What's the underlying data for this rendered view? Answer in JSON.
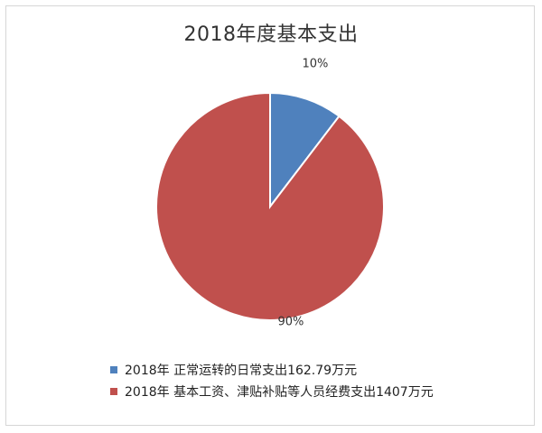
{
  "chart_data": {
    "type": "pie",
    "title": "2018年度基本支出",
    "slices": [
      {
        "label": "2018年 正常运转的日常支出162.79万元",
        "value": 162.79,
        "percent_label": "10%",
        "color": "#4f81bd"
      },
      {
        "label": "2018年 基本工资、津贴补贴等人员经费支出1407万元",
        "value": 1407,
        "percent_label": "90%",
        "color": "#c0504d"
      }
    ],
    "legend_position": "bottom-left"
  }
}
